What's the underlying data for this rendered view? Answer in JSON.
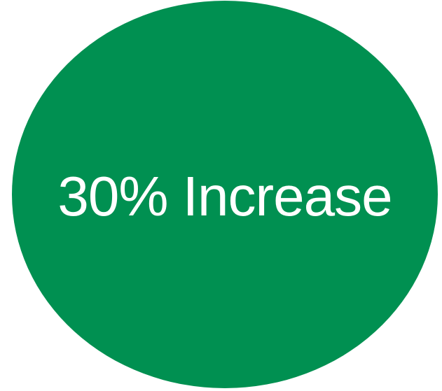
{
  "badge": {
    "text": "30% Increase",
    "fill_color": "#009051",
    "text_color": "#ffffff"
  }
}
